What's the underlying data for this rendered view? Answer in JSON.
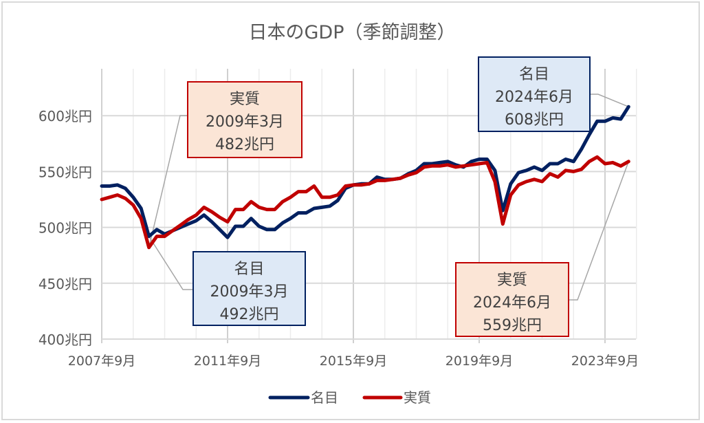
{
  "chart_data": {
    "type": "line",
    "title": "日本のGDP（季節調整）",
    "xlabel": "",
    "ylabel": "",
    "ylim": [
      400,
      640
    ],
    "y_ticks": [
      "400兆円",
      "450兆円",
      "500兆円",
      "550兆円",
      "600兆円"
    ],
    "y_tick_values": [
      400,
      450,
      500,
      550,
      600
    ],
    "x_ticks": [
      "2007年9月",
      "2011年9月",
      "2015年9月",
      "2019年9月",
      "2023年9月"
    ],
    "grid": true,
    "legend_position": "bottom",
    "x": [
      "2007/9",
      "2007/12",
      "2008/3",
      "2008/6",
      "2008/9",
      "2008/12",
      "2009/3",
      "2009/6",
      "2009/9",
      "2009/12",
      "2010/3",
      "2010/6",
      "2010/9",
      "2010/12",
      "2011/3",
      "2011/6",
      "2011/9",
      "2011/12",
      "2012/3",
      "2012/6",
      "2012/9",
      "2012/12",
      "2013/3",
      "2013/6",
      "2013/9",
      "2013/12",
      "2014/3",
      "2014/6",
      "2014/9",
      "2014/12",
      "2015/3",
      "2015/6",
      "2015/9",
      "2015/12",
      "2016/3",
      "2016/6",
      "2016/9",
      "2016/12",
      "2017/3",
      "2017/6",
      "2017/9",
      "2017/12",
      "2018/3",
      "2018/6",
      "2018/9",
      "2018/12",
      "2019/3",
      "2019/6",
      "2019/9",
      "2019/12",
      "2020/3",
      "2020/6",
      "2020/9",
      "2020/12",
      "2021/3",
      "2021/6",
      "2021/9",
      "2021/12",
      "2022/3",
      "2022/6",
      "2022/9",
      "2022/12",
      "2023/3",
      "2023/6",
      "2023/9",
      "2023/12",
      "2024/3",
      "2024/6"
    ],
    "series": [
      {
        "name": "名目",
        "color": "#002060",
        "values": [
          537,
          537,
          538,
          535,
          527,
          517,
          492,
          498,
          494,
          497,
          500,
          503,
          506,
          511,
          505,
          498,
          491,
          501,
          501,
          508,
          501,
          498,
          498,
          504,
          508,
          513,
          513,
          517,
          518,
          519,
          524,
          535,
          538,
          539,
          539,
          545,
          543,
          543,
          544,
          548,
          551,
          557,
          557,
          558,
          559,
          556,
          554,
          559,
          561,
          561,
          551,
          515,
          539,
          549,
          551,
          554,
          551,
          557,
          557,
          561,
          559,
          570,
          583,
          595,
          595,
          598,
          597,
          608
        ]
      },
      {
        "name": "実質",
        "color": "#c00000",
        "values": [
          525,
          527,
          529,
          526,
          520,
          508,
          482,
          492,
          492,
          497,
          502,
          507,
          511,
          518,
          514,
          509,
          505,
          516,
          516,
          523,
          518,
          516,
          516,
          523,
          527,
          532,
          532,
          537,
          527,
          527,
          529,
          537,
          538,
          538,
          539,
          542,
          542,
          543,
          544,
          547,
          549,
          554,
          555,
          555,
          556,
          554,
          555,
          556,
          557,
          558,
          541,
          503,
          529,
          538,
          541,
          543,
          541,
          548,
          545,
          551,
          550,
          552,
          559,
          563,
          557,
          558,
          555,
          559
        ]
      }
    ],
    "annotations": [
      {
        "series": "実質",
        "line1": "実質",
        "line2": "2009年3月",
        "line3": "482兆円",
        "point_index": 6
      },
      {
        "series": "名目",
        "line1": "名目",
        "line2": "2009年3月",
        "line3": "492兆円",
        "point_index": 6
      },
      {
        "series": "名目",
        "line1": "名目",
        "line2": "2024年6月",
        "line3": "608兆円",
        "point_index": 67
      },
      {
        "series": "実質",
        "line1": "実質",
        "line2": "2024年6月",
        "line3": "559兆円",
        "point_index": 67
      }
    ]
  },
  "colors": {
    "nominal": "#002060",
    "real": "#c00000",
    "nominal_callout_fill": "#dee9f6",
    "real_callout_fill": "#fbe5d6",
    "grid": "#d9d9d9",
    "text": "#595959"
  },
  "legend": [
    {
      "label": "名目",
      "color": "#002060"
    },
    {
      "label": "実質",
      "color": "#c00000"
    }
  ]
}
